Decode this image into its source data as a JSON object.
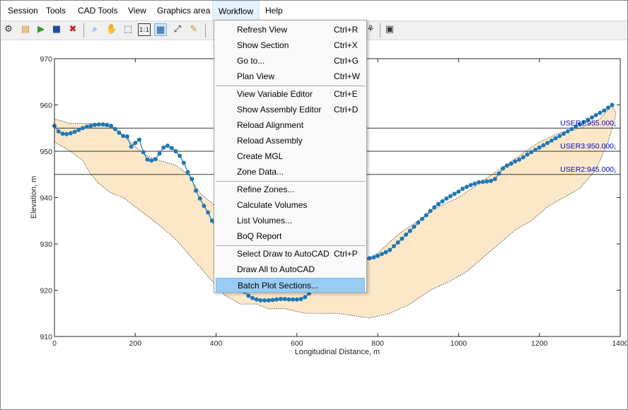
{
  "menubar": {
    "items": [
      {
        "label": "Session"
      },
      {
        "label": "Tools"
      },
      {
        "label": "CAD Tools"
      },
      {
        "label": "View"
      },
      {
        "label": "Graphics area"
      },
      {
        "label": "Workflow"
      },
      {
        "label": "Help"
      }
    ],
    "active": "Workflow"
  },
  "toolbar": {
    "icons": [
      "settings-icon",
      "open-file-icon",
      "run-icon",
      "save-icon",
      "close-red-icon",
      "zoom-icon",
      "pan-hand-icon",
      "select-cursor-icon",
      "scale-1-1-icon",
      "grid-icon",
      "fit-extents-icon",
      "edit-icon",
      "vertical-line-icon",
      "tree-icon",
      "panel-icon"
    ]
  },
  "workflow_menu": {
    "groups": [
      [
        {
          "label": "Refresh View",
          "shortcut": "Ctrl+R"
        },
        {
          "label": "Show Section",
          "shortcut": "Ctrl+X"
        },
        {
          "label": "Go to...",
          "shortcut": "Ctrl+G"
        },
        {
          "label": "Plan View",
          "shortcut": "Ctrl+W"
        }
      ],
      [
        {
          "label": "View Variable Editor",
          "shortcut": "Ctrl+E"
        },
        {
          "label": "Show Assembly Editor",
          "shortcut": "Ctrl+D"
        },
        {
          "label": "Reload Alignment",
          "shortcut": ""
        },
        {
          "label": "Reload Assembly",
          "shortcut": ""
        },
        {
          "label": "Create MGL",
          "shortcut": ""
        },
        {
          "label": "Zone Data...",
          "shortcut": ""
        }
      ],
      [
        {
          "label": "Refine Zones...",
          "shortcut": ""
        },
        {
          "label": "Calculate Volumes",
          "shortcut": ""
        },
        {
          "label": "List Volumes...",
          "shortcut": ""
        },
        {
          "label": "BoQ Report",
          "shortcut": ""
        }
      ],
      [
        {
          "label": "Select Draw to AutoCAD",
          "shortcut": "Ctrl+P"
        },
        {
          "label": "Draw All to AutoCAD",
          "shortcut": ""
        },
        {
          "label": "Batch Plot Sections...",
          "shortcut": ""
        }
      ]
    ],
    "highlighted": "Batch Plot Sections..."
  },
  "chart_data": {
    "type": "line",
    "xlabel": "Longitudinal Distance, m",
    "ylabel": "Elevation, m",
    "xlim": [
      0,
      1400
    ],
    "ylim": [
      910,
      970
    ],
    "xticks": [
      0,
      200,
      400,
      600,
      800,
      1000,
      1200,
      1400
    ],
    "yticks": [
      910,
      920,
      930,
      940,
      950,
      960,
      970
    ],
    "grid": false,
    "colors": {
      "profile": "#1f77b4",
      "band_fill": "#fce8c8",
      "band_edge": "#333333",
      "reference_line": "#333333",
      "annotation": "#0000cc"
    },
    "reference_lines": [
      {
        "label": "USER1:955.000",
        "y": 955
      },
      {
        "label": "USER3:950.000",
        "y": 950
      },
      {
        "label": "USER2:945.000",
        "y": 945
      }
    ],
    "band_upper": [
      [
        0,
        957
      ],
      [
        40,
        956
      ],
      [
        100,
        956
      ],
      [
        150,
        955
      ],
      [
        200,
        951
      ],
      [
        230,
        949
      ],
      [
        260,
        948
      ],
      [
        300,
        947
      ],
      [
        330,
        945
      ],
      [
        360,
        941
      ],
      [
        400,
        938
      ],
      [
        440,
        934
      ],
      [
        480,
        931
      ],
      [
        520,
        929
      ],
      [
        560,
        928
      ],
      [
        600,
        927
      ],
      [
        650,
        924
      ],
      [
        700,
        923
      ],
      [
        750,
        925
      ],
      [
        800,
        928
      ],
      [
        850,
        932
      ],
      [
        900,
        935
      ],
      [
        950,
        938
      ],
      [
        1000,
        940
      ],
      [
        1050,
        943
      ],
      [
        1100,
        946
      ],
      [
        1150,
        949
      ],
      [
        1200,
        952
      ],
      [
        1250,
        954
      ],
      [
        1300,
        955
      ],
      [
        1350,
        957
      ],
      [
        1380,
        960
      ]
    ],
    "band_lower": [
      [
        0,
        952
      ],
      [
        40,
        950
      ],
      [
        70,
        948
      ],
      [
        90,
        945
      ],
      [
        110,
        943
      ],
      [
        140,
        941
      ],
      [
        170,
        940
      ],
      [
        200,
        938
      ],
      [
        230,
        936
      ],
      [
        260,
        934
      ],
      [
        300,
        931
      ],
      [
        340,
        927
      ],
      [
        380,
        923
      ],
      [
        420,
        919
      ],
      [
        460,
        917
      ],
      [
        500,
        917
      ],
      [
        530,
        916
      ],
      [
        570,
        916
      ],
      [
        620,
        915
      ],
      [
        700,
        915
      ],
      [
        780,
        914
      ],
      [
        830,
        915
      ],
      [
        880,
        917
      ],
      [
        930,
        920
      ],
      [
        980,
        922
      ],
      [
        1020,
        924
      ],
      [
        1060,
        927
      ],
      [
        1100,
        930
      ],
      [
        1140,
        933
      ],
      [
        1180,
        935
      ],
      [
        1220,
        938
      ],
      [
        1260,
        940
      ],
      [
        1300,
        942
      ],
      [
        1340,
        946
      ],
      [
        1370,
        952
      ],
      [
        1390,
        958
      ],
      [
        1380,
        960
      ]
    ],
    "series": [
      {
        "x": [
          0,
          10,
          20,
          30,
          40,
          50,
          60,
          70,
          80,
          90,
          100,
          110,
          120,
          130,
          140,
          150,
          160,
          170,
          180,
          190,
          200,
          210,
          220,
          230,
          240,
          250,
          260,
          270,
          280,
          290,
          300,
          310,
          320,
          330,
          340,
          350,
          360,
          370,
          380,
          390,
          400,
          410,
          420,
          430,
          440,
          450,
          460,
          470,
          480,
          490,
          500,
          510,
          520,
          530,
          540,
          550,
          560,
          570,
          580,
          590,
          600,
          610,
          620,
          630,
          640,
          650,
          660,
          670,
          680,
          690,
          700,
          710,
          720,
          730,
          740,
          750,
          760,
          770,
          780,
          790,
          800,
          810,
          820,
          830,
          840,
          850,
          860,
          870,
          880,
          890,
          900,
          910,
          920,
          930,
          940,
          950,
          960,
          970,
          980,
          990,
          1000,
          1010,
          1020,
          1030,
          1040,
          1050,
          1060,
          1070,
          1080,
          1090,
          1100,
          1110,
          1120,
          1130,
          1140,
          1150,
          1160,
          1170,
          1180,
          1190,
          1200,
          1210,
          1220,
          1230,
          1240,
          1250,
          1260,
          1270,
          1280,
          1290,
          1300,
          1310,
          1320,
          1330,
          1340,
          1350,
          1360,
          1370,
          1380
        ],
        "y": [
          955.5,
          954.3,
          953.8,
          953.7,
          953.9,
          954.2,
          954.6,
          955.0,
          955.3,
          955.5,
          955.7,
          955.8,
          955.8,
          955.7,
          955.5,
          954.8,
          954.0,
          953.3,
          953.2,
          951.0,
          951.8,
          952.5,
          949.8,
          948.2,
          948.0,
          948.3,
          949.5,
          950.8,
          951.2,
          950.7,
          950.0,
          949.0,
          947.5,
          945.5,
          944.0,
          941.5,
          939.8,
          938.2,
          936.8,
          935.0,
          933.2,
          931.2,
          929.3,
          927.3,
          925.2,
          923.3,
          921.2,
          919.7,
          918.8,
          918.3,
          918.0,
          917.8,
          917.8,
          917.8,
          917.9,
          918.0,
          918.1,
          918.1,
          918.0,
          918.0,
          918.0,
          918.1,
          918.5,
          919.3,
          920.5,
          921.8,
          923.0,
          923.8,
          924.3,
          924.7,
          925.2,
          925.6,
          926.0,
          926.3,
          926.5,
          926.6,
          926.7,
          926.8,
          926.9,
          927.1,
          927.4,
          927.8,
          928.2,
          928.7,
          929.5,
          930.3,
          931.1,
          932.0,
          932.8,
          933.7,
          934.6,
          935.4,
          936.2,
          937.1,
          937.9,
          938.6,
          939.2,
          939.8,
          940.3,
          940.8,
          941.3,
          941.9,
          942.3,
          942.7,
          943.0,
          943.3,
          943.4,
          943.5,
          943.6,
          944.0,
          945.2,
          946.3,
          946.9,
          947.3,
          947.8,
          948.2,
          948.7,
          949.3,
          949.8,
          950.3,
          950.8,
          951.3,
          951.8,
          952.3,
          952.8,
          953.3,
          953.8,
          954.3,
          954.8,
          955.3,
          955.8,
          956.3,
          956.8,
          957.3,
          957.8,
          958.3,
          958.8,
          959.4,
          960.0
        ]
      }
    ]
  }
}
